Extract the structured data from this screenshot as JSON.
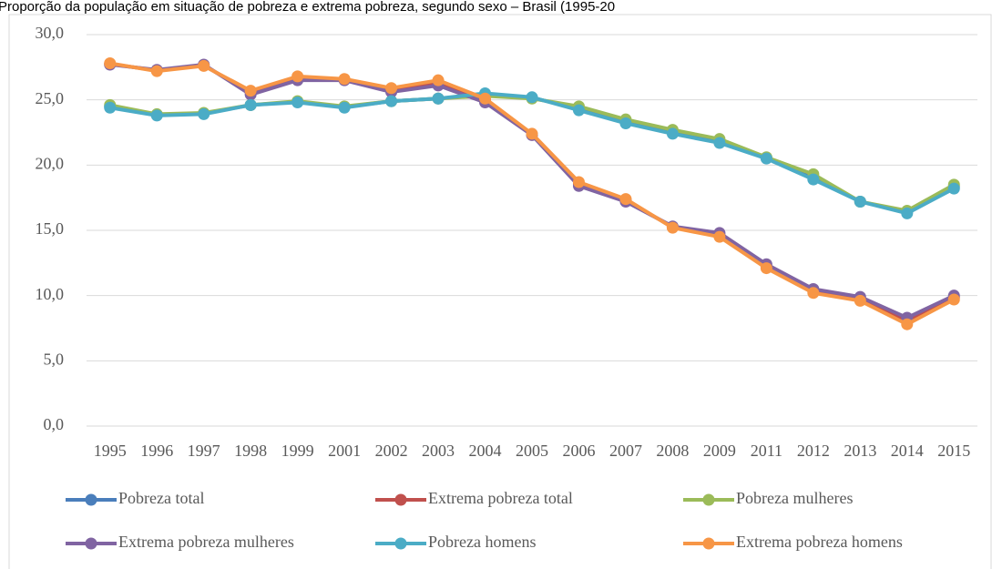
{
  "chart_data": {
    "type": "line",
    "title": "Proporção da população em situação de pobreza e extrema pobreza, segundo sexo – Brasil (1995-20",
    "categories": [
      "1995",
      "1996",
      "1997",
      "1998",
      "1999",
      "2001",
      "2002",
      "2003",
      "2004",
      "2005",
      "2006",
      "2007",
      "2008",
      "2009",
      "2011",
      "2012",
      "2013",
      "2014",
      "2015"
    ],
    "series": [
      {
        "name": "Pobreza total",
        "color": "#4a7ebb",
        "values": [
          24.5,
          23.85,
          23.95,
          24.6,
          24.85,
          24.45,
          24.9,
          25.1,
          25.4,
          25.15,
          24.35,
          23.35,
          22.55,
          21.85,
          20.55,
          19.1,
          17.2,
          16.4,
          18.35
        ]
      },
      {
        "name": "Extrema pobreza total",
        "color": "#c0504d",
        "values": [
          27.75,
          27.25,
          27.65,
          25.55,
          26.65,
          26.55,
          25.75,
          26.3,
          24.95,
          22.35,
          18.55,
          17.3,
          15.25,
          14.65,
          12.25,
          10.35,
          9.75,
          8.05,
          9.85
        ]
      },
      {
        "name": "Pobreza mulheres",
        "color": "#9bbb59",
        "values": [
          24.6,
          23.9,
          24.0,
          24.6,
          24.9,
          24.5,
          24.9,
          25.1,
          25.3,
          25.1,
          24.5,
          23.5,
          22.7,
          22.0,
          20.6,
          19.3,
          17.2,
          16.5,
          18.5
        ]
      },
      {
        "name": "Extrema pobreza mulheres",
        "color": "#8064a2",
        "values": [
          27.7,
          27.3,
          27.7,
          25.4,
          26.5,
          26.5,
          25.6,
          26.1,
          24.8,
          22.3,
          18.4,
          17.2,
          15.3,
          14.8,
          12.4,
          10.5,
          9.9,
          8.3,
          10.0
        ]
      },
      {
        "name": "Pobreza homens",
        "color": "#4bacc6",
        "values": [
          24.4,
          23.8,
          23.9,
          24.6,
          24.8,
          24.4,
          24.9,
          25.1,
          25.5,
          25.2,
          24.2,
          23.2,
          22.4,
          21.7,
          20.5,
          18.9,
          17.2,
          16.3,
          18.2
        ]
      },
      {
        "name": "Extrema pobreza homens",
        "color": "#f79646",
        "values": [
          27.8,
          27.2,
          27.6,
          25.7,
          26.8,
          26.6,
          25.9,
          26.5,
          25.1,
          22.4,
          18.7,
          17.4,
          15.2,
          14.5,
          12.1,
          10.2,
          9.6,
          7.8,
          9.7
        ]
      }
    ],
    "ylim": [
      0,
      30
    ],
    "yticks": [
      {
        "value": 0,
        "label": "0,0"
      },
      {
        "value": 5,
        "label": "5,0"
      },
      {
        "value": 10,
        "label": "10,0"
      },
      {
        "value": 15,
        "label": "15,0"
      },
      {
        "value": 20,
        "label": "20,0"
      },
      {
        "value": 25,
        "label": "25,0"
      },
      {
        "value": 30,
        "label": "30,0"
      }
    ],
    "grid": true,
    "legend": "bottom"
  }
}
